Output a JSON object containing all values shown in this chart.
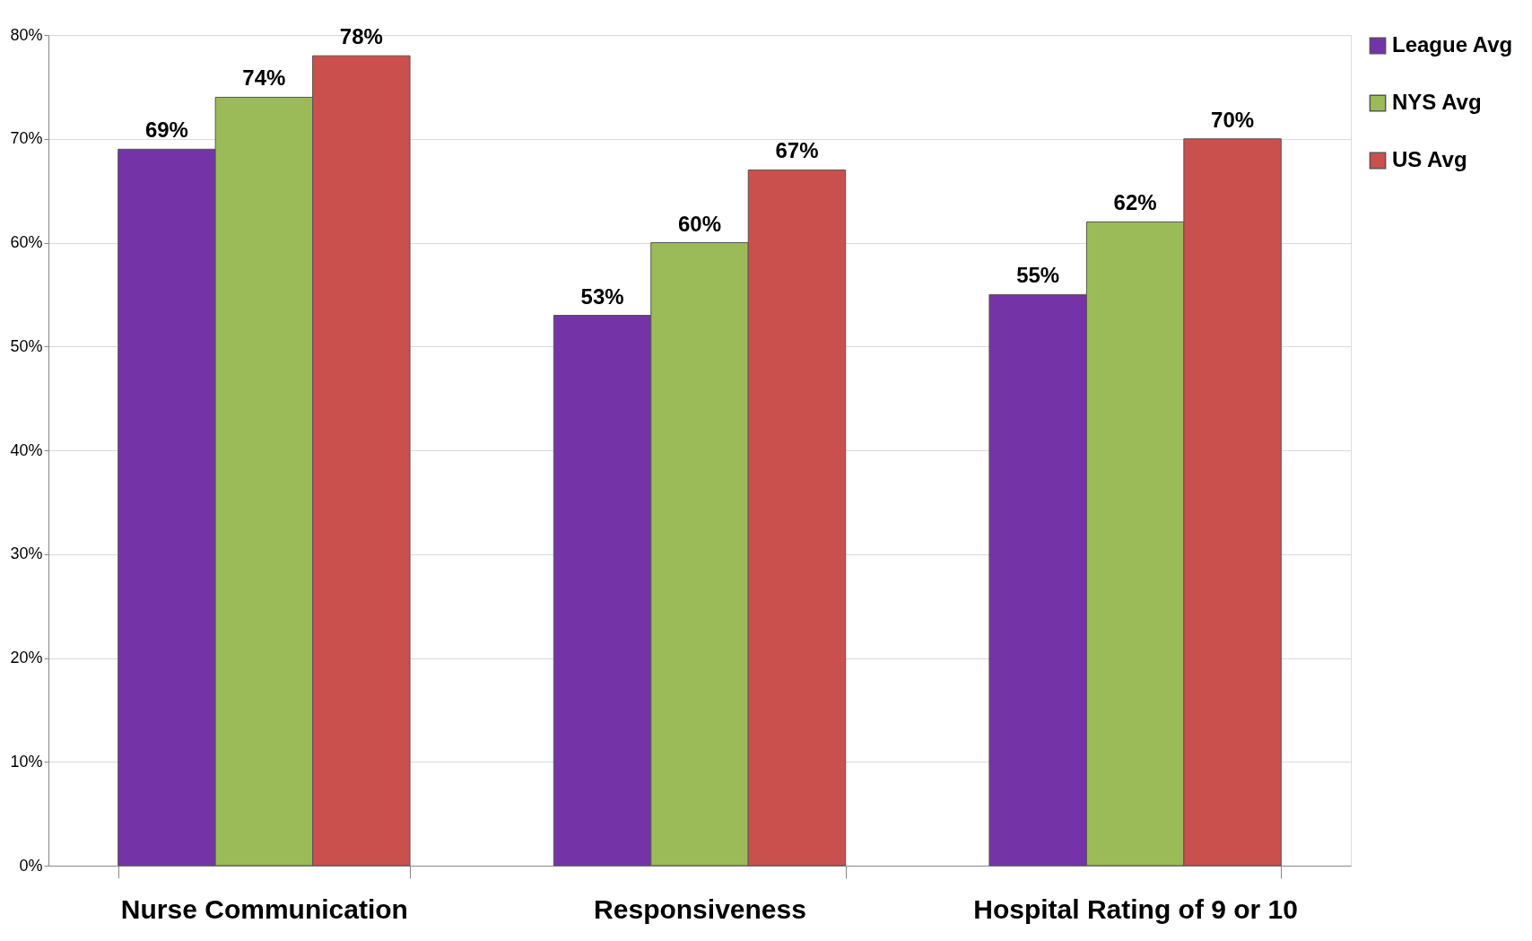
{
  "chart_data": {
    "type": "bar",
    "categories": [
      "Nurse Communication",
      "Responsiveness",
      "Hospital Rating of 9 or 10"
    ],
    "series": [
      {
        "name": "League Avg",
        "color": "#7433a6",
        "values": [
          69,
          53,
          55
        ],
        "value_labels": [
          "69%",
          "53%",
          "55%"
        ]
      },
      {
        "name": "NYS Avg",
        "color": "#9bbb59",
        "values": [
          74,
          60,
          62
        ],
        "value_labels": [
          "74%",
          "60%",
          "62%"
        ]
      },
      {
        "name": "US Avg",
        "color": "#c9504d",
        "values": [
          78,
          67,
          70
        ],
        "value_labels": [
          "78%",
          "67%",
          "70%"
        ]
      }
    ],
    "ylim": [
      0,
      80
    ],
    "yticks": [
      {
        "value": 0,
        "label": "0%"
      },
      {
        "value": 10,
        "label": "10%"
      },
      {
        "value": 20,
        "label": "20%"
      },
      {
        "value": 30,
        "label": "30%"
      },
      {
        "value": 40,
        "label": "40%"
      },
      {
        "value": 50,
        "label": "50%"
      },
      {
        "value": 60,
        "label": "60%"
      },
      {
        "value": 70,
        "label": "70%"
      },
      {
        "value": 80,
        "label": "80%"
      }
    ],
    "grid": "y",
    "legend": "right"
  }
}
